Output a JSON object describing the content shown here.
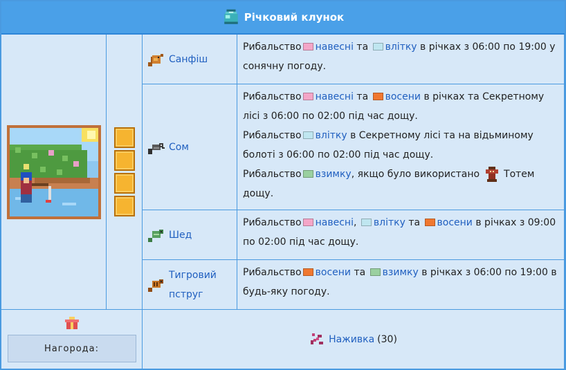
{
  "header": {
    "title": "Річковий клунок",
    "icon": "river-bundle-icon"
  },
  "slots_count": 4,
  "rows": [
    {
      "fish": "Санфіш",
      "icon": "sunfish-icon",
      "lines": [
        [
          {
            "t": "text",
            "v": "Рибальство"
          },
          {
            "t": "season",
            "color": "#f4a6c8",
            "icon": "spring-icon"
          },
          {
            "t": "link",
            "v": "навесні"
          },
          {
            "t": "text",
            "v": " та "
          },
          {
            "t": "season",
            "color": "#bfe6f0",
            "icon": "summer-icon"
          },
          {
            "t": "link",
            "v": "влітку"
          },
          {
            "t": "text",
            "v": " в річках з 06:00 по 19:00 у сонячну погоду."
          }
        ]
      ]
    },
    {
      "fish": "Сом",
      "icon": "catfish-icon",
      "lines": [
        [
          {
            "t": "text",
            "v": "Рибальство"
          },
          {
            "t": "season",
            "color": "#f4a6c8",
            "icon": "spring-icon"
          },
          {
            "t": "link",
            "v": "навесні"
          },
          {
            "t": "text",
            "v": " та "
          },
          {
            "t": "season",
            "color": "#f07830",
            "icon": "fall-icon"
          },
          {
            "t": "link",
            "v": "восени"
          },
          {
            "t": "text",
            "v": " в річках та Секретному лісі з 06:00 по 02:00 під час дощу."
          }
        ],
        [
          {
            "t": "text",
            "v": "Рибальство"
          },
          {
            "t": "season",
            "color": "#bfe6f0",
            "icon": "summer-icon"
          },
          {
            "t": "link",
            "v": "влітку"
          },
          {
            "t": "text",
            "v": " в Секретному лісі та на відьминому болоті з 06:00 по 02:00 під час дощу."
          }
        ],
        [
          {
            "t": "text",
            "v": "Рибальство"
          },
          {
            "t": "season",
            "color": "#9ad0a0",
            "icon": "winter-icon"
          },
          {
            "t": "link",
            "v": "взимку"
          },
          {
            "t": "text",
            "v": ", якщо було використано "
          },
          {
            "t": "totem",
            "icon": "rain-totem-icon"
          },
          {
            "t": "text",
            "v": " Тотем дощу."
          }
        ]
      ]
    },
    {
      "fish": "Шед",
      "icon": "shad-icon",
      "lines": [
        [
          {
            "t": "text",
            "v": "Рибальство"
          },
          {
            "t": "season",
            "color": "#f4a6c8",
            "icon": "spring-icon"
          },
          {
            "t": "link",
            "v": "навесні"
          },
          {
            "t": "text",
            "v": ", "
          },
          {
            "t": "season",
            "color": "#bfe6f0",
            "icon": "summer-icon"
          },
          {
            "t": "link",
            "v": "влітку"
          },
          {
            "t": "text",
            "v": " та "
          },
          {
            "t": "season",
            "color": "#f07830",
            "icon": "fall-icon"
          },
          {
            "t": "link",
            "v": "восени"
          },
          {
            "t": "text",
            "v": " в річках з 09:00 по 02:00 під час дощу."
          }
        ]
      ]
    },
    {
      "fish": "Тигровий пструг",
      "icon": "tiger-trout-icon",
      "lines": [
        [
          {
            "t": "text",
            "v": "Рибальство"
          },
          {
            "t": "season",
            "color": "#f07830",
            "icon": "fall-icon"
          },
          {
            "t": "link",
            "v": "восени"
          },
          {
            "t": "text",
            "v": " та "
          },
          {
            "t": "season",
            "color": "#9ad0a0",
            "icon": "winter-icon"
          },
          {
            "t": "link",
            "v": "взимку"
          },
          {
            "t": "text",
            "v": " в річках з 06:00 по 19:00 в будь-яку погоду."
          }
        ]
      ]
    }
  ],
  "reward": {
    "label": "Нагорода:",
    "item": "Наживка",
    "qty": "(30)",
    "icon": "bait-icon",
    "gift_icon": "gift-icon"
  }
}
